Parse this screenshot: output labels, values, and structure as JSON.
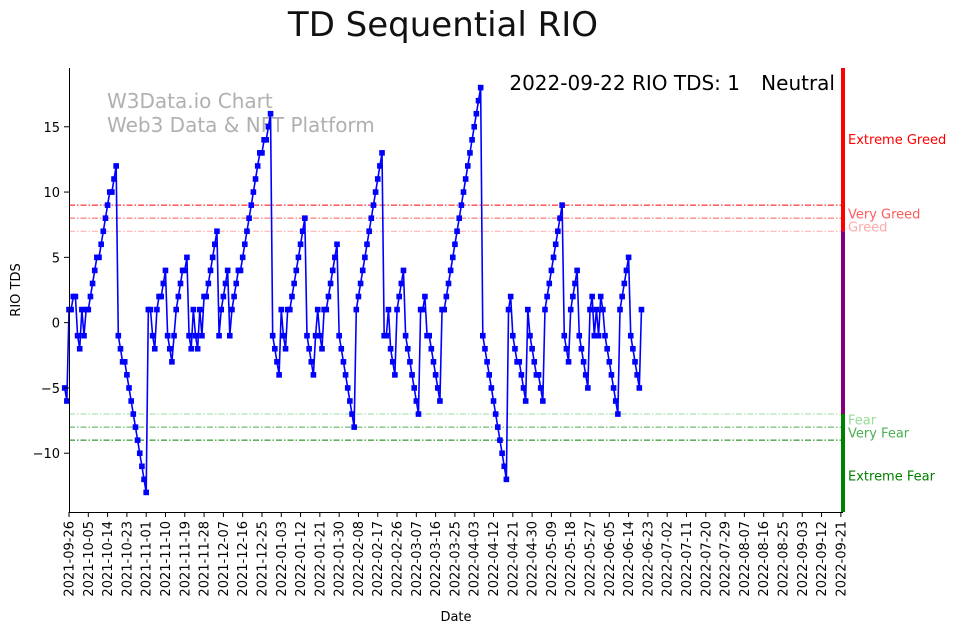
{
  "chart_data": {
    "type": "line",
    "title": "TD Sequential RIO",
    "xlabel": "Date",
    "ylabel": "RIO TDS",
    "ylim": [
      -14.5,
      19.5
    ],
    "yticks": [
      -10,
      -5,
      0,
      5,
      10,
      15
    ],
    "grid": false,
    "watermark": [
      "W3Data.io Chart",
      "Web3 Data & NFT Platform"
    ],
    "status": {
      "date": "2022-09-22",
      "label": "RIO TDS:",
      "value": "1",
      "mood": "Neutral",
      "mood_color": "#800080"
    },
    "x_tick_labels": [
      "2021-09-26",
      "2021-10-05",
      "2021-10-14",
      "2021-10-23",
      "2021-11-01",
      "2021-11-10",
      "2021-11-19",
      "2021-11-28",
      "2021-12-07",
      "2021-12-16",
      "2021-12-25",
      "2022-01-03",
      "2022-01-12",
      "2022-01-21",
      "2022-01-30",
      "2022-02-08",
      "2022-02-17",
      "2022-02-26",
      "2022-03-07",
      "2022-03-16",
      "2022-03-25",
      "2022-04-03",
      "2022-04-12",
      "2022-04-21",
      "2022-04-30",
      "2022-05-09",
      "2022-05-18",
      "2022-05-27",
      "2022-06-05",
      "2022-06-14",
      "2022-06-23",
      "2022-07-02",
      "2022-07-11",
      "2022-07-20",
      "2022-07-29",
      "2022-08-07",
      "2022-08-16",
      "2022-08-25",
      "2022-09-03",
      "2022-09-12",
      "2022-09-21"
    ],
    "x_start": "2021-09-26",
    "x_end": "2022-09-22",
    "thresholds": [
      {
        "value": 9,
        "color": "#ff0000",
        "label": "Extreme Greed"
      },
      {
        "value": 8,
        "color": "#ff5a5a",
        "label": "Very Greed"
      },
      {
        "value": 7,
        "color": "#ffaaaa",
        "label": "Greed"
      },
      {
        "value": -7,
        "color": "#98dc98",
        "label": "Fear"
      },
      {
        "value": -8,
        "color": "#4caf50",
        "label": "Very Fear"
      },
      {
        "value": -9,
        "color": "#008000",
        "label": "Extreme Fear"
      }
    ],
    "zone_labels": [
      {
        "text": "Extreme Greed",
        "y": 14,
        "color": "#ff0000"
      },
      {
        "text": "Very Greed",
        "y": 8.3,
        "color": "#ff5a5a"
      },
      {
        "text": "Greed",
        "y": 7.3,
        "color": "#ffaaaa"
      },
      {
        "text": "Fear",
        "y": -7.5,
        "color": "#98dc98"
      },
      {
        "text": "Very Fear",
        "y": -8.5,
        "color": "#4caf50"
      },
      {
        "text": "Extreme Fear",
        "y": -11.8,
        "color": "#008000"
      }
    ],
    "zone_bar": [
      {
        "from": 7,
        "to": 19.5,
        "color": "#ff0000"
      },
      {
        "from": -7,
        "to": 7,
        "color": "#800080"
      },
      {
        "from": -14.5,
        "to": -7,
        "color": "#008000"
      }
    ],
    "series": [
      {
        "color": "#0000ff",
        "x_start": "2021-09-24",
        "y": [
          -5,
          -6,
          1,
          1,
          2,
          2,
          -1,
          -2,
          1,
          -1,
          1,
          1,
          2,
          3,
          4,
          5,
          5,
          6,
          7,
          8,
          9,
          10,
          10,
          11,
          12,
          -1,
          -2,
          -3,
          -3,
          -4,
          -5,
          -6,
          -7,
          -8,
          -9,
          -10,
          -11,
          -12,
          -13,
          1,
          1,
          -1,
          -2,
          1,
          2,
          2,
          3,
          4,
          -1,
          -2,
          -3,
          -1,
          1,
          2,
          3,
          4,
          4,
          5,
          -1,
          -2,
          1,
          -1,
          -2,
          1,
          -1,
          2,
          2,
          3,
          4,
          5,
          6,
          7,
          -1,
          1,
          2,
          3,
          4,
          -1,
          1,
          2,
          3,
          4,
          4,
          5,
          6,
          7,
          8,
          9,
          10,
          11,
          12,
          13,
          13,
          14,
          14,
          15,
          16,
          -1,
          -2,
          -3,
          -4,
          1,
          -1,
          -2,
          1,
          1,
          2,
          3,
          4,
          5,
          6,
          7,
          8,
          -1,
          -2,
          -3,
          -4,
          -1,
          1,
          -1,
          -2,
          1,
          1,
          2,
          3,
          4,
          5,
          6,
          -1,
          -2,
          -3,
          -4,
          -5,
          -6,
          -7,
          -8,
          1,
          2,
          3,
          4,
          5,
          6,
          7,
          8,
          9,
          10,
          11,
          12,
          13,
          -1,
          -1,
          1,
          -2,
          -3,
          -4,
          1,
          2,
          3,
          4,
          -1,
          -2,
          -3,
          -4,
          -5,
          -6,
          -7,
          1,
          1,
          2,
          -1,
          -1,
          -2,
          -3,
          -4,
          -5,
          -6,
          1,
          1,
          2,
          3,
          4,
          5,
          6,
          7,
          8,
          9,
          10,
          11,
          12,
          13,
          14,
          15,
          16,
          17,
          18,
          -1,
          -2,
          -3,
          -4,
          -5,
          -6,
          -7,
          -8,
          -9,
          -10,
          -11,
          -12,
          1,
          2,
          -1,
          -2,
          -3,
          -3,
          -4,
          -5,
          -6,
          1,
          -1,
          -2,
          -3,
          -4,
          -4,
          -5,
          -6,
          1,
          2,
          3,
          4,
          5,
          6,
          7,
          8,
          9,
          -1,
          -2,
          -3,
          1,
          2,
          3,
          4,
          -1,
          -2,
          -3,
          -4,
          -5,
          1,
          2,
          -1,
          1,
          -1,
          2,
          1,
          -1,
          -2,
          -3,
          -4,
          -5,
          -6,
          -7,
          1,
          2,
          3,
          4,
          5,
          -1,
          -2,
          -3,
          -4,
          -5,
          1
        ]
      }
    ]
  }
}
